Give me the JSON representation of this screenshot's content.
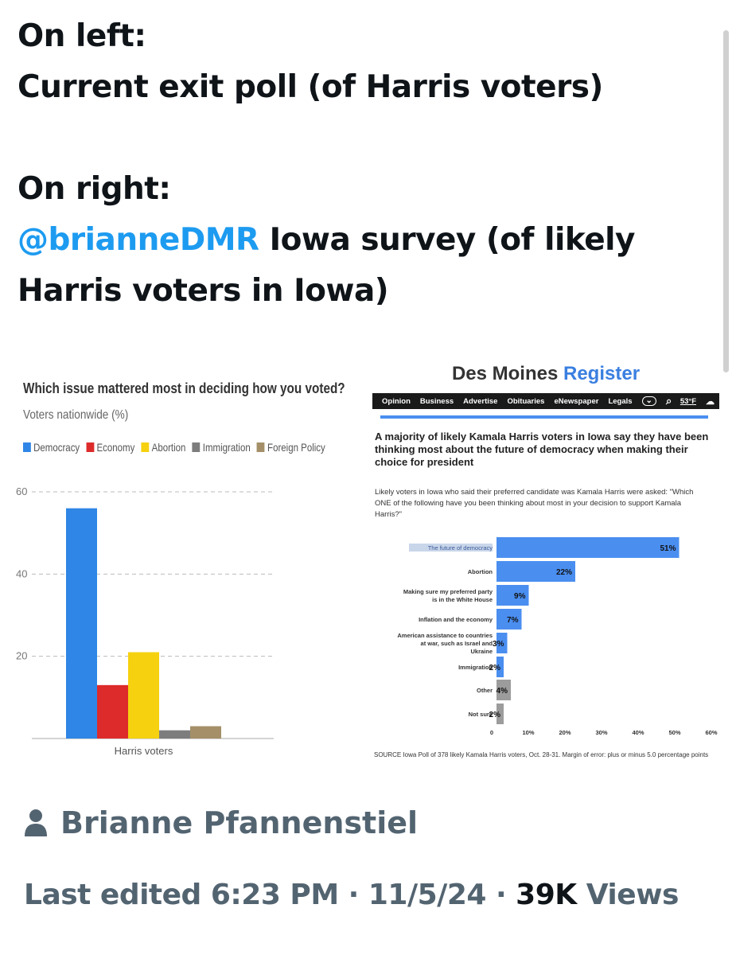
{
  "tweet": {
    "line1": "On left:",
    "line2": "Current exit poll (of Harris voters)",
    "line3": "On right:",
    "mention": "@brianneDMR",
    "line4_rest": " Iowa survey (of likely",
    "line5": "Harris voters in Iowa)"
  },
  "left_chart": {
    "question": "Which issue mattered most in deciding how you voted?",
    "subtitle": "Voters nationwide (%)",
    "legend": [
      {
        "label": "Democracy",
        "color": "#2f86e6"
      },
      {
        "label": "Economy",
        "color": "#dd2b2b"
      },
      {
        "label": "Abortion",
        "color": "#f6d10f"
      },
      {
        "label": "Immigration",
        "color": "#7d7d7d"
      },
      {
        "label": "Foreign Policy",
        "color": "#a48f68"
      }
    ]
  },
  "right_chart": {
    "logo_main": "Des Moines ",
    "logo_accent": "Register",
    "nav": [
      "Opinion",
      "Business",
      "Advertise",
      "Obituaries",
      "eNewspaper",
      "Legals"
    ],
    "temperature": "53°F",
    "headline": "A majority of likely Kamala Harris voters in Iowa say they have been thinking most about the future of democracy when making their choice for president",
    "description": "Likely voters in Iowa who said their preferred candidate was Kamala Harris were asked: \"Which ONE of the following have you been thinking about most in your decision to support Kamala Harris?\"",
    "source": "SOURCE Iowa Poll of 378 likely Kamala Harris voters, Oct. 28-31. Margin of error: plus or minus 5.0 percentage points"
  },
  "chart_data": [
    {
      "type": "bar",
      "title": "Which issue mattered most in deciding how you voted?",
      "subtitle": "Voters nationwide (%)",
      "categories": [
        "Harris voters"
      ],
      "series": [
        {
          "name": "Democracy",
          "values": [
            56
          ],
          "color": "#2f86e6"
        },
        {
          "name": "Economy",
          "values": [
            13
          ],
          "color": "#dd2b2b"
        },
        {
          "name": "Abortion",
          "values": [
            21
          ],
          "color": "#f6d10f"
        },
        {
          "name": "Immigration",
          "values": [
            2
          ],
          "color": "#7d7d7d"
        },
        {
          "name": "Foreign Policy",
          "values": [
            3
          ],
          "color": "#a48f68"
        }
      ],
      "ylim": [
        0,
        60
      ],
      "yticks": [
        "20",
        "40",
        "60"
      ],
      "grid": true,
      "legend": "top"
    },
    {
      "type": "bar",
      "orientation": "horizontal",
      "title": "A majority of likely Kamala Harris voters in Iowa say they have been thinking most about the future of democracy when making their choice for president",
      "categories": [
        "The future of democracy",
        "Abortion",
        "Making sure my preferred party is in the White House",
        "Inflation and the economy",
        "American assistance to countries at war, such as Israel and Ukraine",
        "Immigration",
        "Other",
        "Not sure"
      ],
      "values": [
        51,
        22,
        9,
        7,
        3,
        2,
        4,
        2
      ],
      "labels": [
        "51%",
        "22%",
        "9%",
        "7%",
        "3%",
        "2%",
        "4%",
        "2%"
      ],
      "colors": [
        "#4a8ef0",
        "#4a8ef0",
        "#4a8ef0",
        "#4a8ef0",
        "#4a8ef0",
        "#4a8ef0",
        "#9c9c9c",
        "#9c9c9c"
      ],
      "xlim": [
        0,
        60
      ],
      "xticks": [
        "0",
        "10%",
        "20%",
        "30%",
        "40%",
        "50%",
        "60%"
      ]
    }
  ],
  "author": {
    "name": "Brianne Pfannenstiel"
  },
  "meta": {
    "edited": "Last edited 6:23 PM · 11/5/24 · ",
    "views_count": "39K",
    "views_label": " Views"
  }
}
